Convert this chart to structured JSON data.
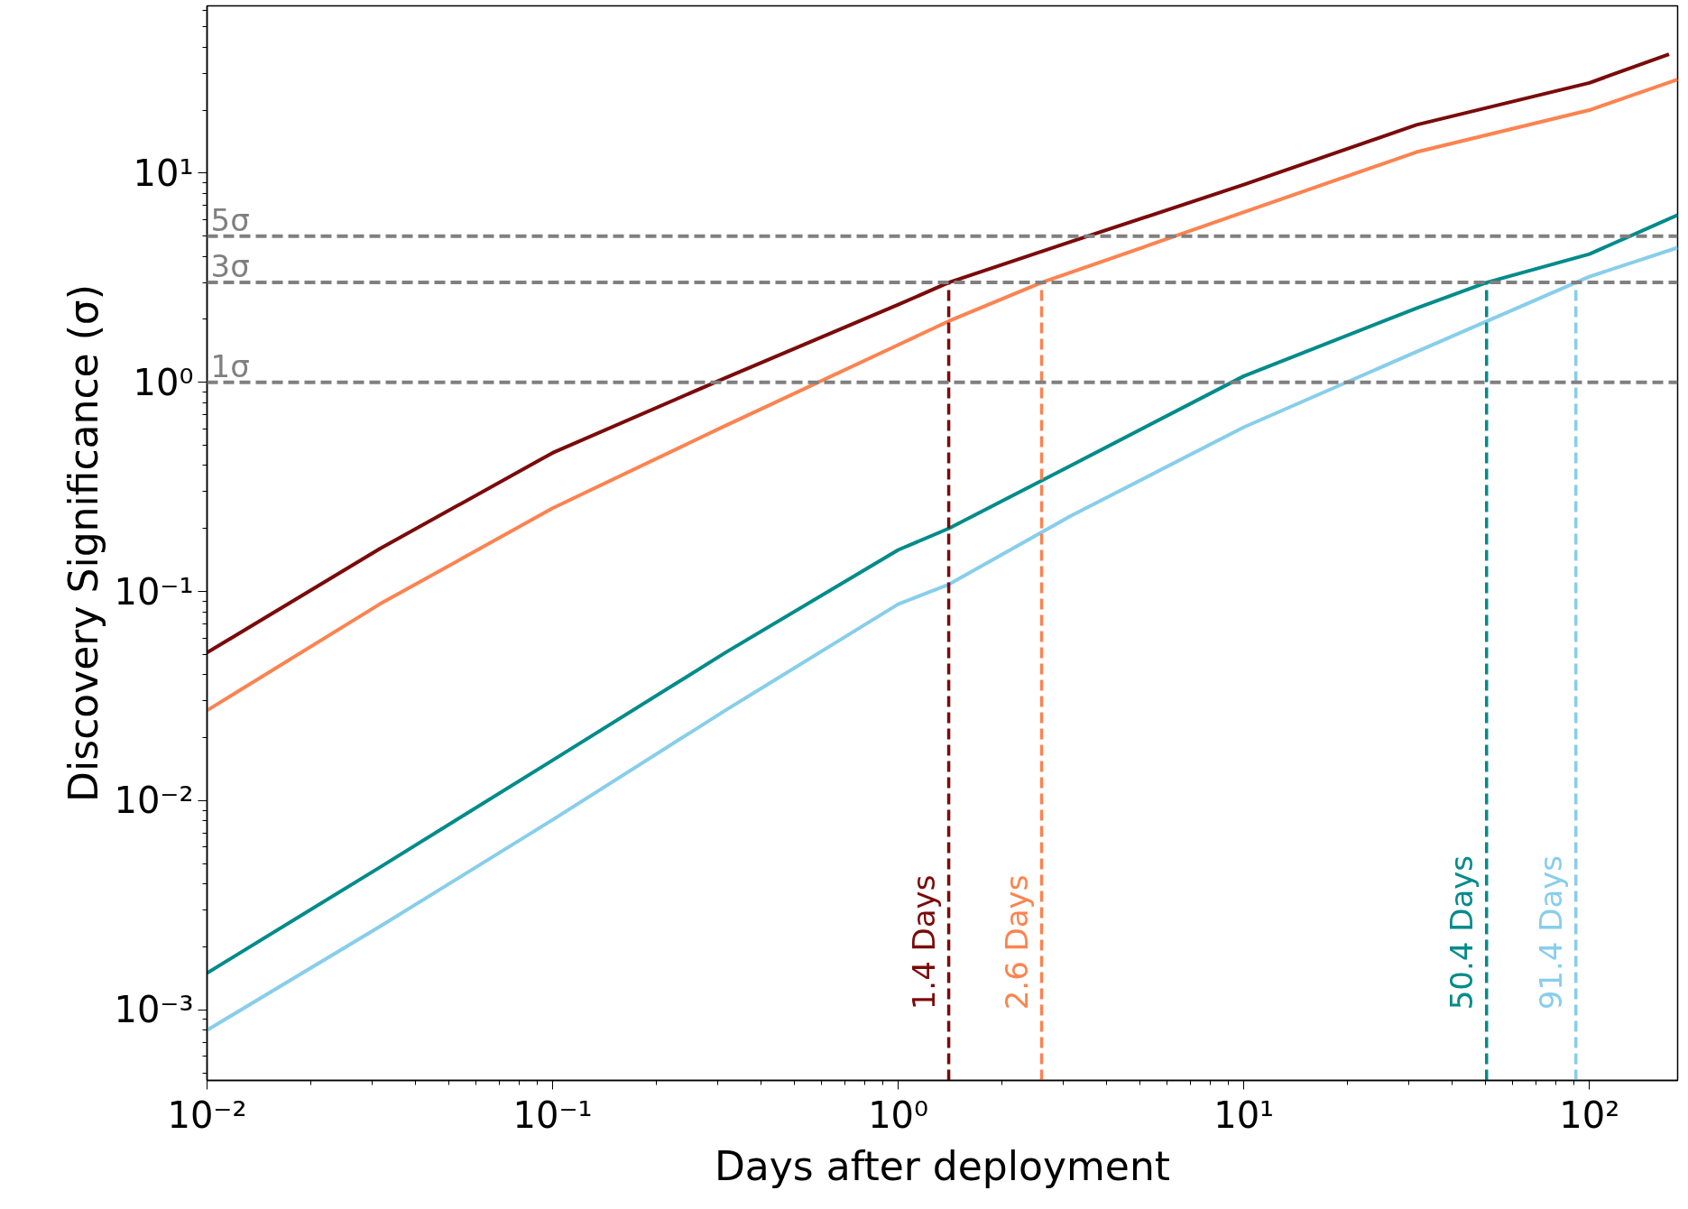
{
  "chart_data": {
    "type": "line",
    "xlabel": "Days after deployment",
    "ylabel": "Discovery Significance (σ)",
    "log": "xy",
    "grid": false,
    "line_style": "solid",
    "marker": "none",
    "xlim": [
      0.01,
      180
    ],
    "ylim": [
      0.00046,
      63
    ],
    "xticks": [
      {
        "value": 0.01,
        "label": "10⁻²"
      },
      {
        "value": 0.1,
        "label": "10⁻¹"
      },
      {
        "value": 1,
        "label": "10⁰"
      },
      {
        "value": 10,
        "label": "10¹"
      },
      {
        "value": 100,
        "label": "10²"
      }
    ],
    "yticks": [
      {
        "value": 0.001,
        "label": "10⁻³"
      },
      {
        "value": 0.01,
        "label": "10⁻²"
      },
      {
        "value": 0.1,
        "label": "10⁻¹"
      },
      {
        "value": 1,
        "label": "10⁰"
      },
      {
        "value": 10,
        "label": "10¹"
      }
    ],
    "series": [
      {
        "color": "#7b0a0a",
        "x": [
          0.01,
          0.0316,
          0.1,
          0.316,
          1,
          1.4,
          3.16,
          10,
          31.6,
          100,
          170
        ],
        "values": [
          0.051,
          0.16,
          0.46,
          1.05,
          2.35,
          3,
          4.7,
          8.8,
          17,
          27,
          37
        ]
      },
      {
        "color": "#fc8350",
        "x": [
          0.01,
          0.0316,
          0.1,
          0.316,
          1,
          1.4,
          2.6,
          10,
          31.6,
          100,
          180
        ],
        "values": [
          0.027,
          0.087,
          0.25,
          0.62,
          1.51,
          1.96,
          3,
          6.5,
          12.6,
          20,
          28
        ]
      },
      {
        "color": "#008b8b",
        "x": [
          0.01,
          0.0316,
          0.1,
          0.316,
          1,
          1.4,
          3.16,
          10,
          31.6,
          50.4,
          100,
          180
        ],
        "values": [
          0.0015,
          0.0048,
          0.0156,
          0.051,
          0.158,
          0.2,
          0.4,
          1.07,
          2.26,
          3,
          4.1,
          6.3
        ]
      },
      {
        "color": "#87ceeb",
        "x": [
          0.01,
          0.0316,
          0.1,
          0.316,
          1,
          1.4,
          3.16,
          10,
          31.6,
          91.4,
          100,
          180
        ],
        "values": [
          0.0008,
          0.0025,
          0.0081,
          0.027,
          0.087,
          0.108,
          0.23,
          0.61,
          1.4,
          3,
          3.2,
          4.4
        ]
      },
      {
        "color": "#7b0a0a",
        "line_style": "dashed",
        "x": [
          1.4,
          1.4
        ],
        "values": [
          0.00046,
          3
        ]
      },
      {
        "color": "#fc8350",
        "line_style": "dashed",
        "x": [
          2.6,
          2.6
        ],
        "values": [
          0.00046,
          3
        ]
      },
      {
        "color": "#008b8b",
        "line_style": "dashed",
        "x": [
          50.4,
          50.4
        ],
        "values": [
          0.00046,
          3
        ]
      },
      {
        "color": "#87ceeb",
        "line_style": "dashed",
        "x": [
          91.4,
          91.4
        ],
        "values": [
          0.00046,
          3
        ]
      }
    ],
    "ref_lines": [
      {
        "axis": "y",
        "value": 5,
        "label": "5σ",
        "color": "#808080",
        "line_style": "dashed"
      },
      {
        "axis": "y",
        "value": 3,
        "label": "3σ",
        "color": "#808080",
        "line_style": "dashed"
      },
      {
        "axis": "y",
        "value": 1,
        "label": "1σ",
        "color": "#808080",
        "line_style": "dashed"
      }
    ],
    "annotations": [
      {
        "text": "1.4 Days",
        "x": 1.4,
        "y": 0.001
      },
      {
        "text": "2.6 Days",
        "x": 2.6,
        "y": 0.001
      },
      {
        "text": "50.4 Days",
        "x": 50.4,
        "y": 0.001
      },
      {
        "text": "91.4 Days",
        "x": 91.4,
        "y": 0.001
      }
    ]
  }
}
